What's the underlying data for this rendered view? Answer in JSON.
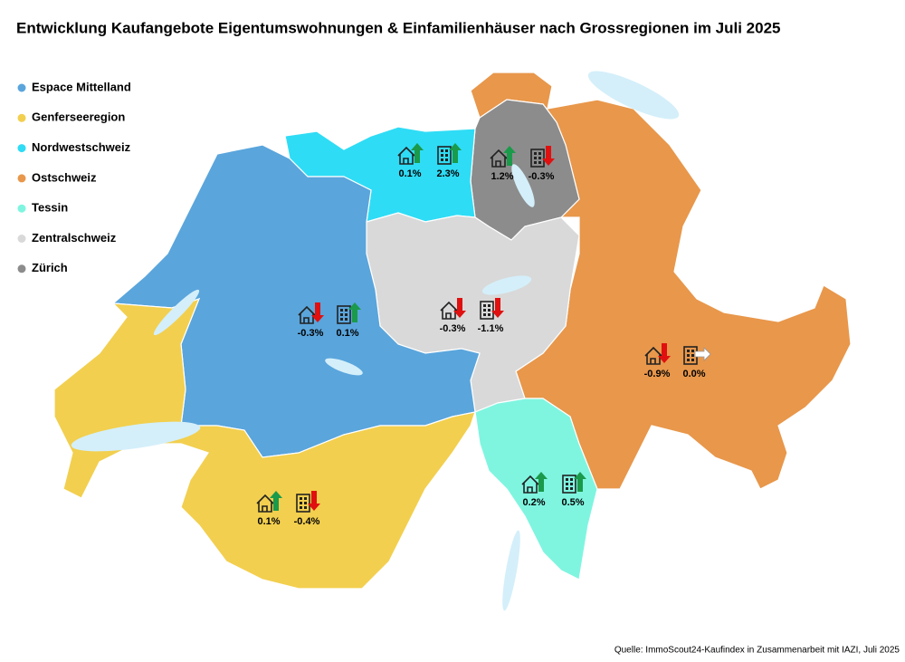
{
  "title": "Entwicklung Kaufangebote Eigentumswohnungen & Einfamilienhäuser nach Grossregionen im Juli 2025",
  "regions": [
    {
      "name": "Espace Mittelland",
      "color": "#5aa5dc",
      "house_change": -0.3,
      "house_label": "-0.3%",
      "apartment_change": 0.1,
      "apartment_label": "0.1%"
    },
    {
      "name": "Genferseeregion",
      "color": "#f2cf4e",
      "house_change": 0.1,
      "house_label": "0.1%",
      "apartment_change": -0.4,
      "apartment_label": "-0.4%"
    },
    {
      "name": "Nordwestschweiz",
      "color": "#2fdcf5",
      "house_change": 0.1,
      "house_label": "0.1%",
      "apartment_change": 2.3,
      "apartment_label": "2.3%"
    },
    {
      "name": "Ostschweiz",
      "color": "#e8974b",
      "house_change": -0.9,
      "house_label": "-0.9%",
      "apartment_change": 0.0,
      "apartment_label": "0.0%"
    },
    {
      "name": "Tessin",
      "color": "#7ff5e0",
      "house_change": 0.2,
      "house_label": "0.2%",
      "apartment_change": 0.5,
      "apartment_label": "0.5%"
    },
    {
      "name": "Zentralschweiz",
      "color": "#d9d9d9",
      "house_change": -0.3,
      "house_label": "-0.3%",
      "apartment_change": -1.1,
      "apartment_label": "-1.1%"
    },
    {
      "name": "Zürich",
      "color": "#8c8c8c",
      "house_change": 1.2,
      "house_label": "1.2%",
      "apartment_change": -0.3,
      "apartment_label": "-0.3%"
    }
  ],
  "source": "Quelle: ImmoScout24-Kaufindex in Zusammenarbeit mit IAZI, Juli 2025"
}
